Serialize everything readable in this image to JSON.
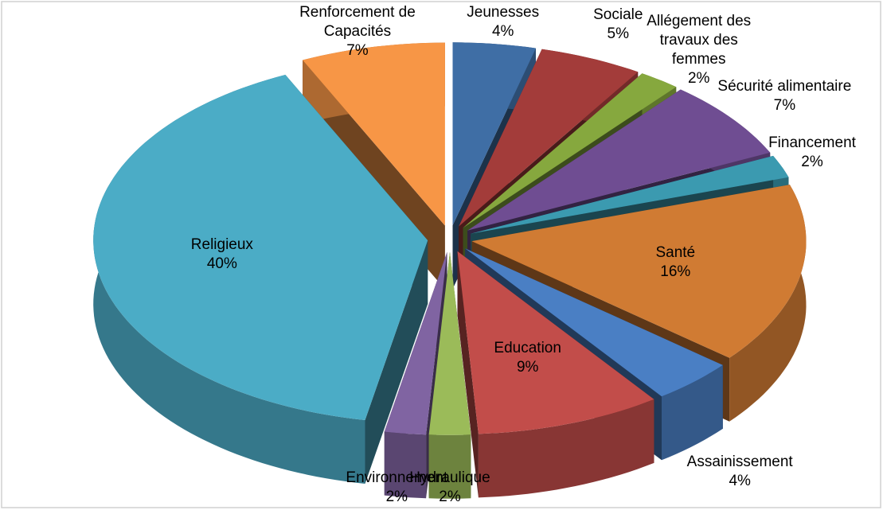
{
  "chart_data": {
    "type": "pie",
    "categories": [
      "Jeunesses",
      "Sociale",
      "Allégement des travaux des femmes",
      "Sécurité alimentaire",
      "Financement",
      "Santé",
      "Assainissement",
      "Education",
      "Hydraulique",
      "Environnement",
      "Religieux",
      "Renforcement de Capacités"
    ],
    "values": [
      4,
      5,
      2,
      7,
      2,
      16,
      4,
      9,
      2,
      2,
      40,
      7
    ],
    "value_labels": [
      "4%",
      "5%",
      "2%",
      "7%",
      "2%",
      "16%",
      "4%",
      "9%",
      "2%",
      "2%",
      "40%",
      "7%"
    ],
    "colors": [
      "#3f6ea5",
      "#a33c3a",
      "#86a83e",
      "#6f4d92",
      "#3b9ab0",
      "#d07b33",
      "#4a7fc4",
      "#c24d4a",
      "#9bbb59",
      "#8064a2",
      "#4bacc6",
      "#f79646"
    ]
  }
}
